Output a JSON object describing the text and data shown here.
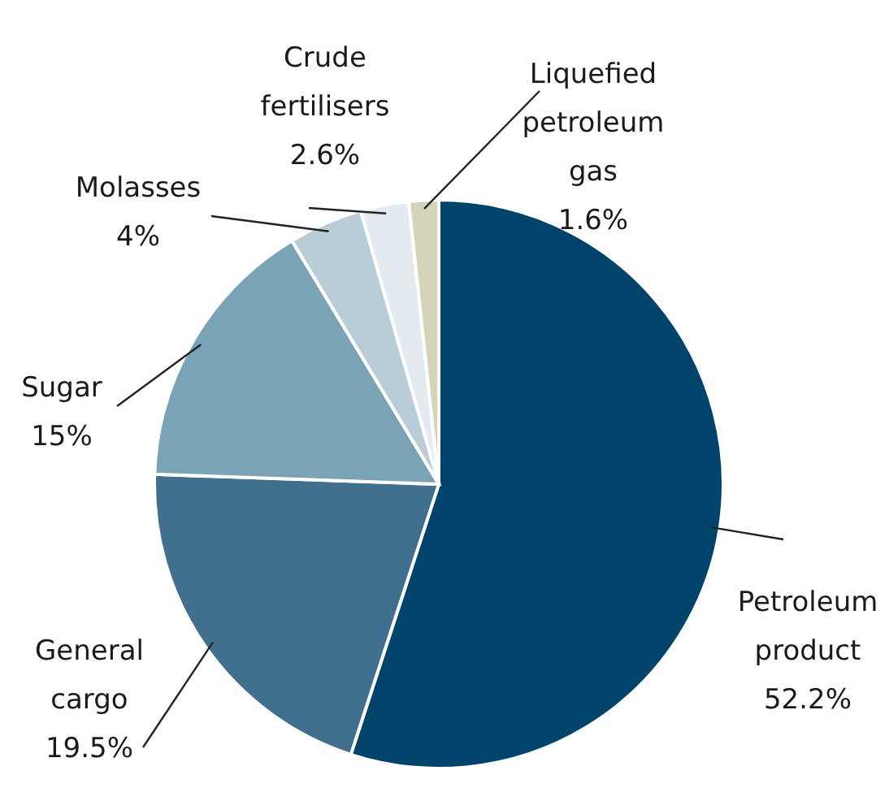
{
  "chart_data": {
    "type": "pie",
    "categories": [
      "Petroleum product",
      "General cargo",
      "Sugar",
      "Molasses",
      "Crude fertilisers",
      "Liquefied petroleum gas"
    ],
    "values": [
      52.2,
      19.5,
      15,
      4,
      2.6,
      1.6
    ],
    "colors": [
      "#00446b",
      "#41708f",
      "#7aa3b6",
      "#b9cdd8",
      "#e3ebf0",
      "#d6d3bb"
    ],
    "value_labels": [
      "52.2%",
      "19.5%",
      "15%",
      "4%",
      "2.6%",
      "1.6%"
    ]
  }
}
